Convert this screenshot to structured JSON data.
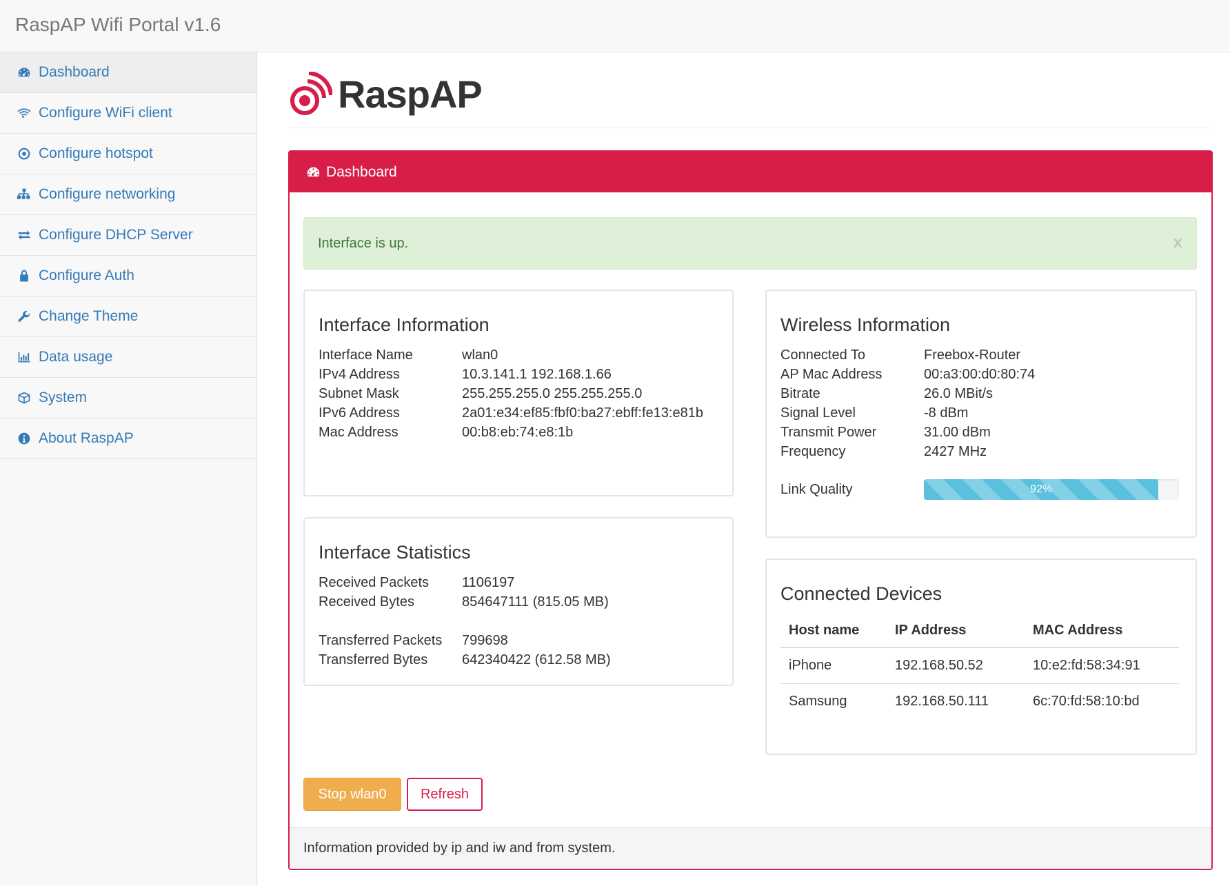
{
  "app": {
    "brand": "RaspAP Wifi Portal v1.6",
    "logo_text": "RaspAP",
    "accent": "#d81e48",
    "link_color": "#337ab7"
  },
  "sidebar": {
    "items": [
      {
        "label": "Dashboard",
        "icon": "dashboard-icon",
        "active": true
      },
      {
        "label": "Configure WiFi client",
        "icon": "wifi-icon"
      },
      {
        "label": "Configure hotspot",
        "icon": "dot-circle-icon"
      },
      {
        "label": "Configure networking",
        "icon": "sitemap-icon"
      },
      {
        "label": "Configure DHCP Server",
        "icon": "exchange-icon"
      },
      {
        "label": "Configure Auth",
        "icon": "lock-icon"
      },
      {
        "label": "Change Theme",
        "icon": "wrench-icon"
      },
      {
        "label": "Data usage",
        "icon": "bar-chart-icon"
      },
      {
        "label": "System",
        "icon": "cube-icon"
      },
      {
        "label": "About RaspAP",
        "icon": "info-circle-icon"
      }
    ]
  },
  "panel": {
    "title": "Dashboard",
    "alert": {
      "text": "Interface is up.",
      "close": "x"
    },
    "interface_info": {
      "title": "Interface Information",
      "rows": [
        {
          "label": "Interface Name",
          "value": "wlan0"
        },
        {
          "label": "IPv4 Address",
          "value": "10.3.141.1 192.168.1.66"
        },
        {
          "label": "Subnet Mask",
          "value": "255.255.255.0 255.255.255.0"
        },
        {
          "label": "IPv6 Address",
          "value": "2a01:e34:ef85:fbf0:ba27:ebff:fe13:e81b"
        },
        {
          "label": "Mac Address",
          "value": "00:b8:eb:74:e8:1b"
        }
      ]
    },
    "interface_stats": {
      "title": "Interface Statistics",
      "rows": [
        {
          "label": "Received Packets",
          "value": "1106197"
        },
        {
          "label": "Received Bytes",
          "value": "854647111 (815.05 MB)"
        },
        {
          "label": "Transferred Packets",
          "value": "799698"
        },
        {
          "label": "Transferred Bytes",
          "value": "642340422 (612.58 MB)"
        }
      ]
    },
    "wireless_info": {
      "title": "Wireless Information",
      "rows": [
        {
          "label": "Connected To",
          "value": "Freebox-Router"
        },
        {
          "label": "AP Mac Address",
          "value": "00:a3:00:d0:80:74"
        },
        {
          "label": "Bitrate",
          "value": "26.0 MBit/s"
        },
        {
          "label": "Signal Level",
          "value": "-8 dBm"
        },
        {
          "label": "Transmit Power",
          "value": "31.00 dBm"
        },
        {
          "label": "Frequency",
          "value": "2427 MHz"
        }
      ],
      "link_quality_label": "Link Quality",
      "link_quality_text": "92%",
      "link_quality_percent": 92
    },
    "devices": {
      "title": "Connected Devices",
      "headers": [
        "Host name",
        "IP Address",
        "MAC Address"
      ],
      "rows": [
        [
          "iPhone",
          "192.168.50.52",
          "10:e2:fd:58:34:91"
        ],
        [
          "Samsung",
          "192.168.50.111",
          "6c:70:fd:58:10:bd"
        ]
      ]
    },
    "buttons": {
      "stop": "Stop wlan0",
      "refresh": "Refresh"
    },
    "footer": "Information provided by ip and iw and from system."
  }
}
